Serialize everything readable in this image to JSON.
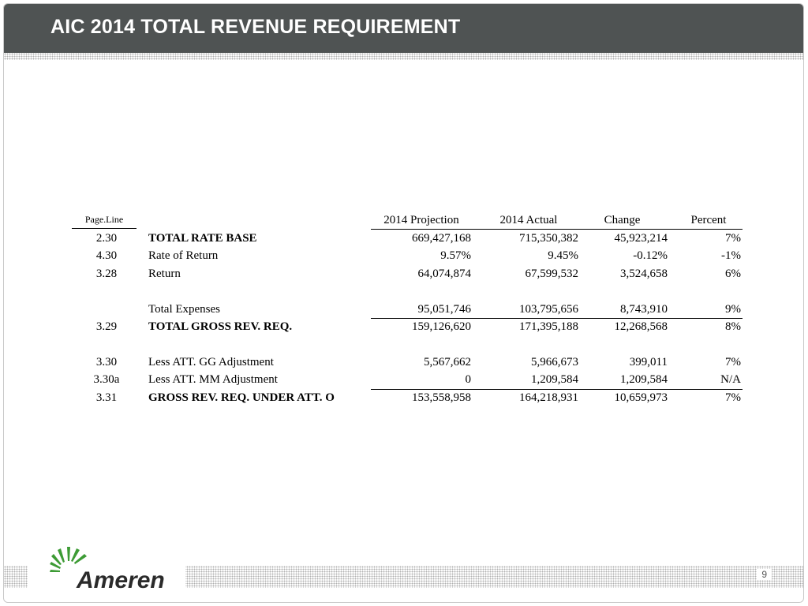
{
  "header": {
    "title": "AIC 2014 TOTAL REVENUE REQUIREMENT"
  },
  "table": {
    "columns": {
      "page_line": "Page.Line",
      "projection": "2014 Projection",
      "actual": "2014 Actual",
      "change": "Change",
      "percent": "Percent"
    },
    "rows": [
      {
        "page": "2.30",
        "desc": "TOTAL RATE BASE",
        "proj": "669,427,168",
        "act": "715,350,382",
        "chg": "45,923,214",
        "pct": "7%"
      },
      {
        "page": "4.30",
        "desc": "Rate of Return",
        "proj": "9.57%",
        "act": "9.45%",
        "chg": "-0.12%",
        "pct": "-1%"
      },
      {
        "page": "3.28",
        "desc": "Return",
        "proj": "64,074,874",
        "act": "67,599,532",
        "chg": "3,524,658",
        "pct": "6%"
      },
      {
        "page": "",
        "desc": "Total Expenses",
        "proj": "95,051,746",
        "act": "103,795,656",
        "chg": "8,743,910",
        "pct": "9%"
      },
      {
        "page": "3.29",
        "desc": "TOTAL GROSS REV. REQ.",
        "proj": "159,126,620",
        "act": "171,395,188",
        "chg": "12,268,568",
        "pct": "8%"
      },
      {
        "page": "3.30",
        "desc": "Less ATT. GG Adjustment",
        "proj": "5,567,662",
        "act": "5,966,673",
        "chg": "399,011",
        "pct": "7%"
      },
      {
        "page": "3.30a",
        "desc": "Less ATT. MM Adjustment",
        "proj": "0",
        "act": "1,209,584",
        "chg": "1,209,584",
        "pct": "N/A"
      },
      {
        "page": "3.31",
        "desc": "GROSS REV. REQ. UNDER ATT. O",
        "proj": "153,558,958",
        "act": "164,218,931",
        "chg": "10,659,973",
        "pct": "7%"
      }
    ]
  },
  "footer": {
    "logo_text": "Ameren",
    "page_number": "9"
  },
  "colors": {
    "header_bg": "#4f5353",
    "logo_green": "#3d9b35",
    "logo_text": "#2a2a2a"
  }
}
